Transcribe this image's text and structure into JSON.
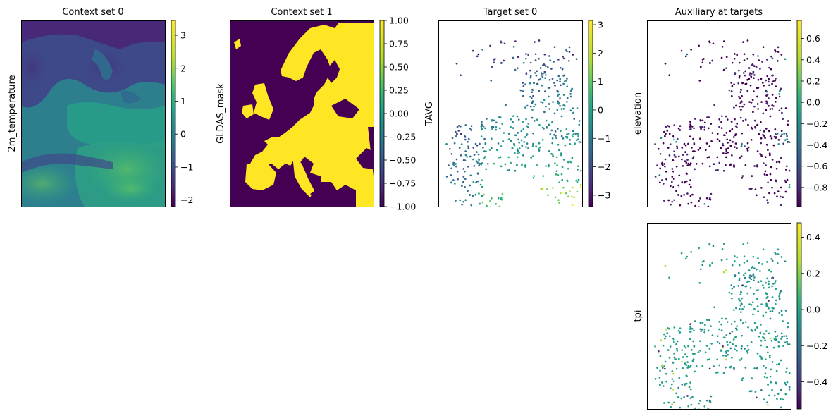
{
  "chart_data": [
    {
      "type": "heatmap",
      "title": "Context set 0",
      "ylabel": "2m_temperature",
      "colorbar": {
        "range": [
          -2.2,
          3.45
        ],
        "ticks": [
          3,
          2,
          1,
          0,
          -1,
          -2
        ],
        "tick_labels": [
          "3",
          "2",
          "1",
          "0",
          "−1",
          "−2"
        ],
        "colormap": "viridis"
      },
      "xticks": [],
      "yticks": []
    },
    {
      "type": "heatmap",
      "title": "Context set 1",
      "ylabel": "GLDAS_mask",
      "colorbar": {
        "range": [
          -1.0,
          1.0
        ],
        "ticks": [
          1.0,
          0.75,
          0.5,
          0.25,
          0.0,
          -0.25,
          -0.5,
          -0.75,
          -1.0
        ],
        "tick_labels": [
          "1.00",
          "0.75",
          "0.50",
          "0.25",
          "0.00",
          "−0.25",
          "−0.50",
          "−0.75",
          "−1.00"
        ],
        "colormap": "viridis"
      },
      "values_shown": {
        "land": 1.0,
        "sea": -1.0
      },
      "xticks": [],
      "yticks": []
    },
    {
      "type": "scatter",
      "title": "Target set 0",
      "ylabel": "TAVG",
      "colorbar": {
        "range": [
          -3.4,
          3.15
        ],
        "ticks": [
          3,
          2,
          1,
          0,
          -1,
          -2,
          -3
        ],
        "tick_labels": [
          "3",
          "2",
          "1",
          "0",
          "−1",
          "−2",
          "−3"
        ],
        "colormap": "viridis"
      },
      "xticks": [],
      "yticks": []
    },
    {
      "type": "scatter",
      "title": "Auxiliary at targets",
      "ylabel": "elevation",
      "colorbar": {
        "range": [
          -0.98,
          0.77
        ],
        "ticks": [
          0.6,
          0.4,
          0.2,
          0.0,
          -0.2,
          -0.4,
          -0.6,
          -0.8
        ],
        "tick_labels": [
          "0.6",
          "0.4",
          "0.2",
          "0.0",
          "−0.2",
          "−0.4",
          "−0.6",
          "−0.8"
        ],
        "colormap": "viridis"
      },
      "xticks": [],
      "yticks": []
    },
    {
      "type": "scatter",
      "title": "",
      "ylabel": "tpi",
      "colorbar": {
        "range": [
          -0.55,
          0.48
        ],
        "ticks": [
          0.4,
          0.2,
          0.0,
          -0.2,
          -0.4
        ],
        "tick_labels": [
          "0.4",
          "0.2",
          "0.0",
          "−0.2",
          "−0.4"
        ],
        "colormap": "viridis"
      },
      "xticks": [],
      "yticks": []
    }
  ]
}
